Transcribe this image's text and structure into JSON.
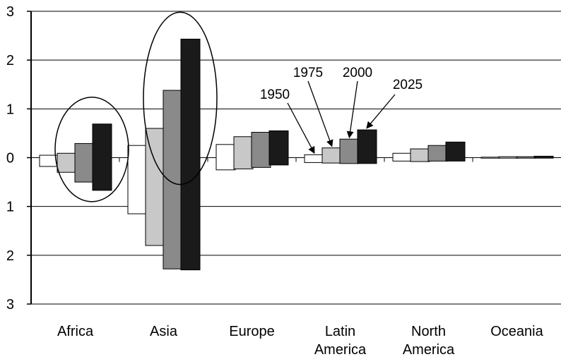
{
  "chart_data": {
    "type": "bar",
    "title": "",
    "xlabel": "",
    "ylabel": "",
    "ylim": [
      -3,
      3
    ],
    "yticks": [
      -3,
      -2,
      -1,
      0,
      1,
      2,
      3
    ],
    "ytick_labels": [
      "3",
      "2",
      "1",
      "0",
      "1",
      "2",
      "3"
    ],
    "grid": true,
    "categories": [
      [
        "Africa"
      ],
      [
        "Asia"
      ],
      [
        "Europe"
      ],
      [
        "Latin",
        "America"
      ],
      [
        "North",
        "America"
      ],
      [
        "Oceania"
      ]
    ],
    "series": [
      {
        "name": "1950",
        "color": "#ffffff",
        "values": [
          [
            -0.18,
            0.05
          ],
          [
            -1.15,
            0.25
          ],
          [
            -0.25,
            0.27
          ],
          [
            -0.1,
            0.06
          ],
          [
            -0.07,
            0.09
          ],
          [
            -0.01,
            0.01
          ]
        ]
      },
      {
        "name": "1975",
        "color": "#c8c8c8",
        "values": [
          [
            -0.3,
            0.09
          ],
          [
            -1.8,
            0.6
          ],
          [
            -0.23,
            0.43
          ],
          [
            -0.11,
            0.2
          ],
          [
            -0.08,
            0.18
          ],
          [
            -0.01,
            0.02
          ]
        ]
      },
      {
        "name": "2000",
        "color": "#8a8a8a",
        "values": [
          [
            -0.5,
            0.29
          ],
          [
            -2.28,
            1.38
          ],
          [
            -0.2,
            0.52
          ],
          [
            -0.12,
            0.38
          ],
          [
            -0.07,
            0.25
          ],
          [
            -0.01,
            0.02
          ]
        ]
      },
      {
        "name": "2025",
        "color": "#1a1a1a",
        "values": [
          [
            -0.67,
            0.69
          ],
          [
            -2.3,
            2.43
          ],
          [
            -0.15,
            0.55
          ],
          [
            -0.12,
            0.57
          ],
          [
            -0.07,
            0.32
          ],
          [
            -0.01,
            0.03
          ]
        ]
      }
    ],
    "annotations": {
      "labels": [
        "1950",
        "1975",
        "2000",
        "2025"
      ],
      "highlighted_categories": [
        "Africa",
        "Asia"
      ]
    }
  }
}
